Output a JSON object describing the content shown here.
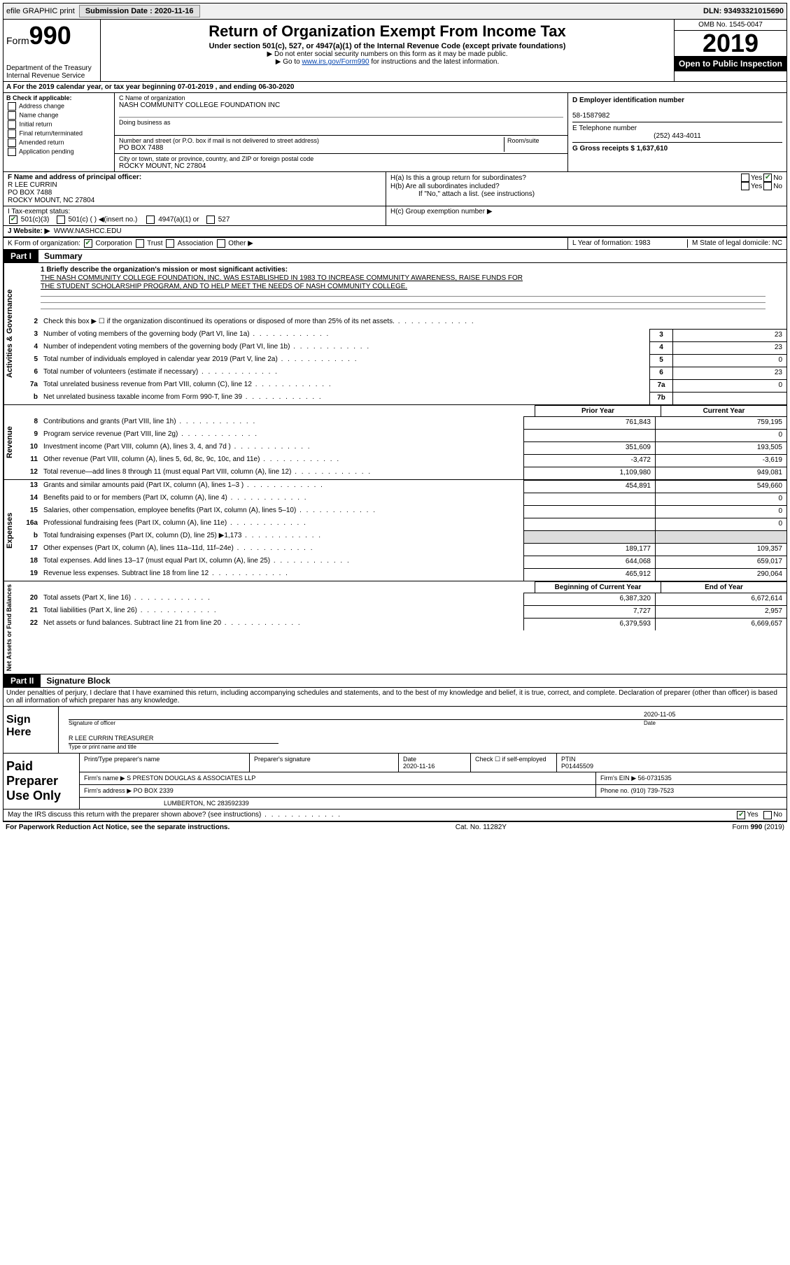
{
  "topbar": {
    "efile": "efile GRAPHIC print",
    "submission_label": "Submission Date : 2020-11-16",
    "dln": "DLN: 93493321015690"
  },
  "header": {
    "form_prefix": "Form",
    "form_number": "990",
    "dept": "Department of the Treasury\nInternal Revenue Service",
    "title": "Return of Organization Exempt From Income Tax",
    "subtitle": "Under section 501(c), 527, or 4947(a)(1) of the Internal Revenue Code (except private foundations)",
    "note1": "Do not enter social security numbers on this form as it may be made public.",
    "note2_pre": "Go to ",
    "note2_link": "www.irs.gov/Form990",
    "note2_post": " for instructions and the latest information.",
    "omb": "OMB No. 1545-0047",
    "year": "2019",
    "inspection": "Open to Public Inspection"
  },
  "row_a": "A For the 2019 calendar year, or tax year beginning 07-01-2019   , and ending 06-30-2020",
  "section_b": {
    "label": "B Check if applicable:",
    "items": [
      "Address change",
      "Name change",
      "Initial return",
      "Final return/terminated",
      "Amended return",
      "Application pending"
    ]
  },
  "section_c": {
    "c_label": "C Name of organization",
    "org_name": "NASH COMMUNITY COLLEGE FOUNDATION INC",
    "dba_label": "Doing business as",
    "street_label": "Number and street (or P.O. box if mail is not delivered to street address)",
    "room_label": "Room/suite",
    "street": "PO BOX 7488",
    "city_label": "City or town, state or province, country, and ZIP or foreign postal code",
    "city": "ROCKY MOUNT, NC  27804"
  },
  "section_d": {
    "d_label": "D Employer identification number",
    "ein": "58-1587982",
    "e_label": "E Telephone number",
    "phone": "(252) 443-4011",
    "g_label": "G Gross receipts $ 1,637,610"
  },
  "section_f": {
    "label": "F  Name and address of principal officer:",
    "name": "R LEE CURRIN",
    "addr1": "PO BOX 7488",
    "addr2": "ROCKY MOUNT, NC  27804"
  },
  "section_h": {
    "ha": "H(a)  Is this a group return for subordinates?",
    "hb": "H(b)  Are all subordinates included?",
    "hb_note": "If \"No,\" attach a list. (see instructions)",
    "hc": "H(c)  Group exemption number ▶",
    "yes": "Yes",
    "no": "No"
  },
  "tax_status": {
    "label": "I   Tax-exempt status:",
    "opt1": "501(c)(3)",
    "opt2": "501(c) (  ) ◀(insert no.)",
    "opt3": "4947(a)(1) or",
    "opt4": "527"
  },
  "website": {
    "label": "J   Website: ▶",
    "value": "WWW.NASHCC.EDU"
  },
  "section_k": {
    "label": "K Form of organization:",
    "corp": "Corporation",
    "trust": "Trust",
    "assoc": "Association",
    "other": "Other ▶",
    "l": "L Year of formation: 1983",
    "m": "M State of legal domicile: NC"
  },
  "part1": {
    "tab": "Part I",
    "title": "Summary"
  },
  "mission": {
    "line1": "1  Briefly describe the organization's mission or most significant activities:",
    "text1": "THE NASH COMMUNITY COLLEGE FOUNDATION, INC. WAS ESTABLISHED IN 1983 TO INCREASE COMMUNITY AWARENESS, RAISE FUNDS FOR",
    "text2": "THE STUDENT SCHOLARSHIP PROGRAM, AND TO HELP MEET THE NEEDS OF NASH COMMUNITY COLLEGE."
  },
  "gov_lines": [
    {
      "n": "2",
      "desc": "Check this box ▶ ☐  if the organization discontinued its operations or disposed of more than 25% of its net assets.",
      "box": "",
      "val": ""
    },
    {
      "n": "3",
      "desc": "Number of voting members of the governing body (Part VI, line 1a)",
      "box": "3",
      "val": "23"
    },
    {
      "n": "4",
      "desc": "Number of independent voting members of the governing body (Part VI, line 1b)",
      "box": "4",
      "val": "23"
    },
    {
      "n": "5",
      "desc": "Total number of individuals employed in calendar year 2019 (Part V, line 2a)",
      "box": "5",
      "val": "0"
    },
    {
      "n": "6",
      "desc": "Total number of volunteers (estimate if necessary)",
      "box": "6",
      "val": "23"
    },
    {
      "n": "7a",
      "desc": "Total unrelated business revenue from Part VIII, column (C), line 12",
      "box": "7a",
      "val": "0"
    },
    {
      "n": "b",
      "desc": "Net unrelated business taxable income from Form 990-T, line 39",
      "box": "7b",
      "val": ""
    }
  ],
  "col_headers": {
    "prior": "Prior Year",
    "current": "Current Year"
  },
  "revenue_lines": [
    {
      "n": "8",
      "desc": "Contributions and grants (Part VIII, line 1h)",
      "py": "761,843",
      "cy": "759,195"
    },
    {
      "n": "9",
      "desc": "Program service revenue (Part VIII, line 2g)",
      "py": "",
      "cy": "0"
    },
    {
      "n": "10",
      "desc": "Investment income (Part VIII, column (A), lines 3, 4, and 7d )",
      "py": "351,609",
      "cy": "193,505"
    },
    {
      "n": "11",
      "desc": "Other revenue (Part VIII, column (A), lines 5, 6d, 8c, 9c, 10c, and 11e)",
      "py": "-3,472",
      "cy": "-3,619"
    },
    {
      "n": "12",
      "desc": "Total revenue—add lines 8 through 11 (must equal Part VIII, column (A), line 12)",
      "py": "1,109,980",
      "cy": "949,081"
    }
  ],
  "expense_lines": [
    {
      "n": "13",
      "desc": "Grants and similar amounts paid (Part IX, column (A), lines 1–3 )",
      "py": "454,891",
      "cy": "549,660"
    },
    {
      "n": "14",
      "desc": "Benefits paid to or for members (Part IX, column (A), line 4)",
      "py": "",
      "cy": "0"
    },
    {
      "n": "15",
      "desc": "Salaries, other compensation, employee benefits (Part IX, column (A), lines 5–10)",
      "py": "",
      "cy": "0"
    },
    {
      "n": "16a",
      "desc": "Professional fundraising fees (Part IX, column (A), line 11e)",
      "py": "",
      "cy": "0"
    },
    {
      "n": "b",
      "desc": "Total fundraising expenses (Part IX, column (D), line 25) ▶1,173",
      "py": "shaded",
      "cy": "shaded"
    },
    {
      "n": "17",
      "desc": "Other expenses (Part IX, column (A), lines 11a–11d, 11f–24e)",
      "py": "189,177",
      "cy": "109,357"
    },
    {
      "n": "18",
      "desc": "Total expenses. Add lines 13–17 (must equal Part IX, column (A), line 25)",
      "py": "644,068",
      "cy": "659,017"
    },
    {
      "n": "19",
      "desc": "Revenue less expenses. Subtract line 18 from line 12",
      "py": "465,912",
      "cy": "290,064"
    }
  ],
  "net_headers": {
    "begin": "Beginning of Current Year",
    "end": "End of Year"
  },
  "net_lines": [
    {
      "n": "20",
      "desc": "Total assets (Part X, line 16)",
      "py": "6,387,320",
      "cy": "6,672,614"
    },
    {
      "n": "21",
      "desc": "Total liabilities (Part X, line 26)",
      "py": "7,727",
      "cy": "2,957"
    },
    {
      "n": "22",
      "desc": "Net assets or fund balances. Subtract line 21 from line 20",
      "py": "6,379,593",
      "cy": "6,669,657"
    }
  ],
  "part2": {
    "tab": "Part II",
    "title": "Signature Block"
  },
  "sig_text": "Under penalties of perjury, I declare that I have examined this return, including accompanying schedules and statements, and to the best of my knowledge and belief, it is true, correct, and complete. Declaration of preparer (other than officer) is based on all information of which preparer has any knowledge.",
  "sign": {
    "label": "Sign Here",
    "sig_officer": "Signature of officer",
    "date": "2020-11-05",
    "date_label": "Date",
    "name": "R LEE CURRIN  TREASURER",
    "name_label": "Type or print name and title"
  },
  "preparer": {
    "label": "Paid Preparer Use Only",
    "h1": "Print/Type preparer's name",
    "h2": "Preparer's signature",
    "h3_label": "Date",
    "h3": "2020-11-16",
    "h4": "Check ☐ if self-employed",
    "h5_label": "PTIN",
    "h5": "P01445509",
    "firm_label": "Firm's name    ▶",
    "firm": "S PRESTON DOUGLAS & ASSOCIATES LLP",
    "firm_ein_label": "Firm's EIN ▶",
    "firm_ein": "56-0731535",
    "addr_label": "Firm's address ▶",
    "addr1": "PO BOX 2339",
    "addr2": "LUMBERTON, NC  283592339",
    "phone_label": "Phone no.",
    "phone": "(910) 739-7523"
  },
  "discuss": "May the IRS discuss this return with the preparer shown above? (see instructions)",
  "footer": {
    "left": "For Paperwork Reduction Act Notice, see the separate instructions.",
    "mid": "Cat. No. 11282Y",
    "right_pre": "Form ",
    "right_num": "990",
    "right_post": " (2019)"
  },
  "vert_labels": {
    "gov": "Activities & Governance",
    "rev": "Revenue",
    "exp": "Expenses",
    "net": "Net Assets or Fund Balances"
  }
}
